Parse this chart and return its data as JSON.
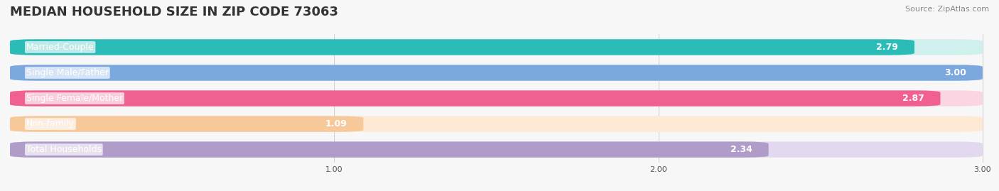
{
  "title": "MEDIAN HOUSEHOLD SIZE IN ZIP CODE 73063",
  "source": "Source: ZipAtlas.com",
  "categories": [
    "Married-Couple",
    "Single Male/Father",
    "Single Female/Mother",
    "Non-family",
    "Total Households"
  ],
  "values": [
    2.79,
    3.0,
    2.87,
    1.09,
    2.34
  ],
  "bar_colors": [
    "#2bbcb8",
    "#7ca8e0",
    "#f06090",
    "#f7c89a",
    "#b09cc8"
  ],
  "bar_bg_colors": [
    "#d0f0ee",
    "#d5e5f7",
    "#fcd5e2",
    "#fde9d4",
    "#e2d8f0"
  ],
  "xmin": 0,
  "xmax": 3.0,
  "xticks": [
    1.0,
    2.0,
    3.0
  ],
  "xtick_labels": [
    "1.00",
    "2.00",
    "3.00"
  ],
  "label_color": "#555555",
  "value_color": "#ffffff",
  "title_fontsize": 13,
  "label_fontsize": 9,
  "value_fontsize": 9,
  "source_fontsize": 8,
  "background_color": "#f7f7f7"
}
